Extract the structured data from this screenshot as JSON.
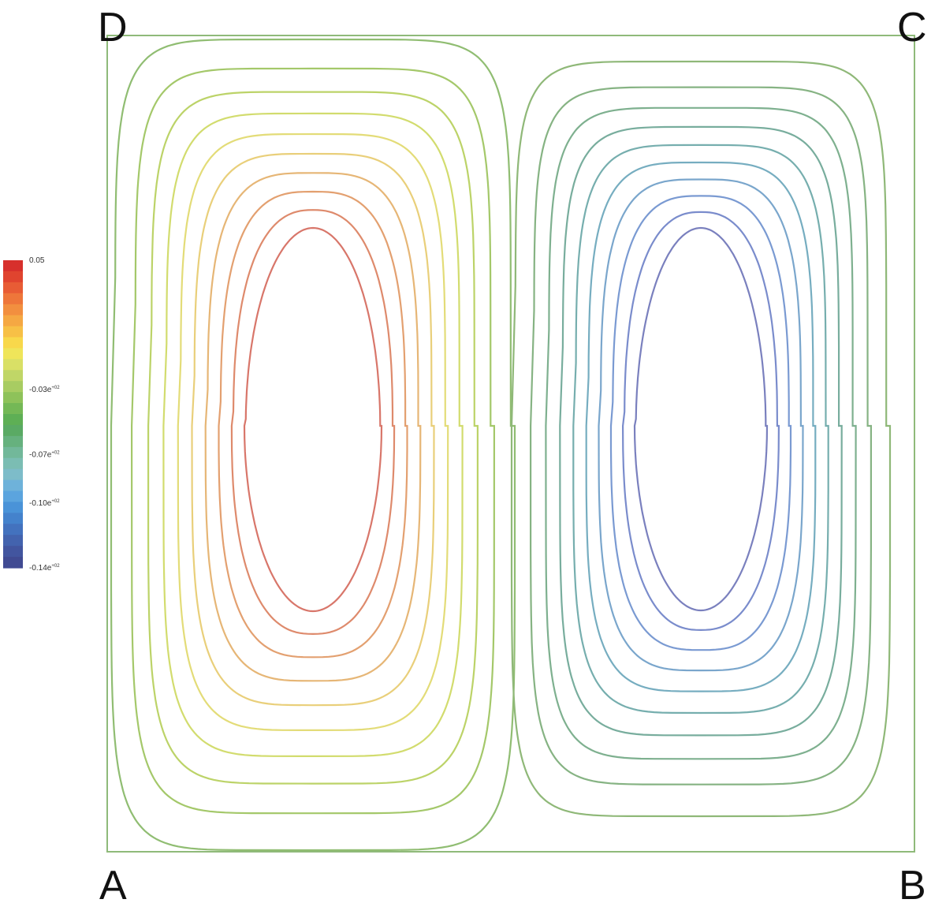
{
  "corners": {
    "top_left": "D",
    "top_right": "C",
    "bottom_left": "A",
    "bottom_right": "B"
  },
  "colorbar": {
    "labels": [
      {
        "value": 0.05,
        "base": "0.05",
        "exp": ""
      },
      {
        "value": -0.03,
        "base": "-0.03e",
        "exp": "+02"
      },
      {
        "value": -0.07,
        "base": "-0.07e",
        "exp": "+02"
      },
      {
        "value": -0.1,
        "base": "-0.10e",
        "exp": "+02"
      },
      {
        "value": -0.14,
        "base": "-0.14e",
        "exp": "+02"
      }
    ],
    "colors": [
      "#d7302c",
      "#e0442f",
      "#e85c35",
      "#ee763a",
      "#f28f3f",
      "#f5a843",
      "#f7c046",
      "#f8d84b",
      "#efe55a",
      "#d9e066",
      "#c0d667",
      "#a8cc62",
      "#8ec25a",
      "#74b856",
      "#5eaf55",
      "#5aaa64",
      "#66b17e",
      "#72b89a",
      "#7bbdb3",
      "#7dbcc9",
      "#6eb2da",
      "#5ba4de",
      "#4a93d8",
      "#4482cc",
      "#4372be",
      "#4363ae",
      "#42559f",
      "#404a92"
    ]
  },
  "frame_color": "#8fba7a",
  "contours": {
    "left_cell": [
      {
        "color": "#90bd72"
      },
      {
        "color": "#a4c86a"
      },
      {
        "color": "#bcd368"
      },
      {
        "color": "#d2dc6e"
      },
      {
        "color": "#e3dc78"
      },
      {
        "color": "#e9cf7a"
      },
      {
        "color": "#e6b676"
      },
      {
        "color": "#e3a070"
      },
      {
        "color": "#de8a6c"
      },
      {
        "color": "#d8766a"
      }
    ],
    "right_cell": [
      {
        "color": "#8fb878"
      },
      {
        "color": "#86b383"
      },
      {
        "color": "#7eb08f"
      },
      {
        "color": "#78ad9d"
      },
      {
        "color": "#76aeae"
      },
      {
        "color": "#76adc0"
      },
      {
        "color": "#7aa6cc"
      },
      {
        "color": "#7a9ad2"
      },
      {
        "color": "#7a8ccc"
      },
      {
        "color": "#7a80be"
      }
    ]
  }
}
